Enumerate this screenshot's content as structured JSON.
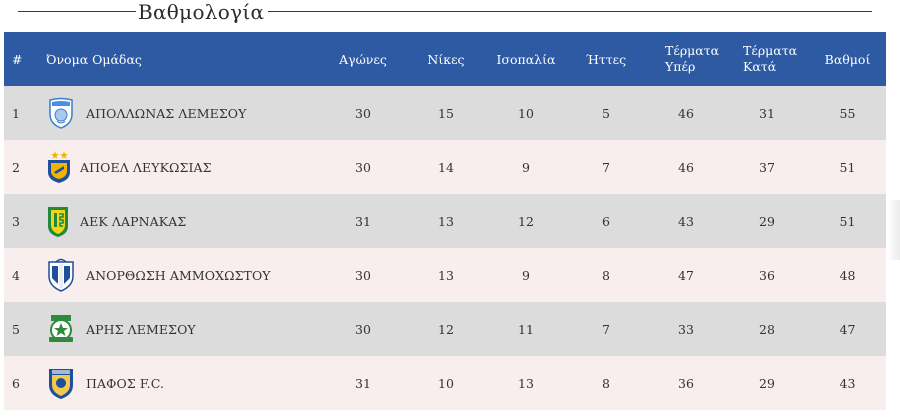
{
  "page": {
    "title": "Βαθμολογία"
  },
  "table": {
    "headers": {
      "pos": "#",
      "team": "Όνομα Ομάδας",
      "played": "Αγώνες",
      "wins": "Νίκες",
      "draws": "Ισοπαλία",
      "losses": "Ήττες",
      "goals_for_1": "Τέρματα",
      "goals_for_2": "Υπέρ",
      "goals_against_1": "Τέρματα",
      "goals_against_2": "Κατά",
      "points": "Βαθμοί"
    },
    "rows": [
      {
        "pos": "1",
        "team": "ΑΠΟΛΛΩΝΑΣ ΛΕΜΕΣΟΥ",
        "logo": "apollon-logo-icon",
        "played": "30",
        "wins": "15",
        "draws": "10",
        "losses": "5",
        "gf": "46",
        "ga": "31",
        "pts": "55"
      },
      {
        "pos": "2",
        "team": "ΑΠΟΕΛ ΛΕΥΚΩΣΙΑΣ",
        "logo": "apoel-logo-icon",
        "played": "30",
        "wins": "14",
        "draws": "9",
        "losses": "7",
        "gf": "46",
        "ga": "37",
        "pts": "51"
      },
      {
        "pos": "3",
        "team": "ΑΕΚ ΛΑΡΝΑΚΑΣ",
        "logo": "aek-logo-icon",
        "played": "31",
        "wins": "13",
        "draws": "12",
        "losses": "6",
        "gf": "43",
        "ga": "29",
        "pts": "51"
      },
      {
        "pos": "4",
        "team": "ΑΝΟΡΘΩΣΗ ΑΜΜΟΧΩΣΤΟΥ",
        "logo": "anorthosis-logo-icon",
        "played": "30",
        "wins": "13",
        "draws": "9",
        "losses": "8",
        "gf": "47",
        "ga": "36",
        "pts": "48"
      },
      {
        "pos": "5",
        "team": "ΑΡΗΣ ΛΕΜΕΣΟΥ",
        "logo": "aris-logo-icon",
        "played": "30",
        "wins": "12",
        "draws": "11",
        "losses": "7",
        "gf": "33",
        "ga": "28",
        "pts": "47"
      },
      {
        "pos": "6",
        "team": "ΠΑΦΟΣ F.C.",
        "logo": "pafos-logo-icon",
        "played": "31",
        "wins": "10",
        "draws": "13",
        "losses": "8",
        "gf": "36",
        "ga": "29",
        "pts": "43"
      }
    ]
  },
  "colors": {
    "header_bg": "#2d5aa3",
    "row_odd": "#dcdcdc",
    "row_even": "#f8eeee",
    "title_line": "#1a3f7a"
  }
}
